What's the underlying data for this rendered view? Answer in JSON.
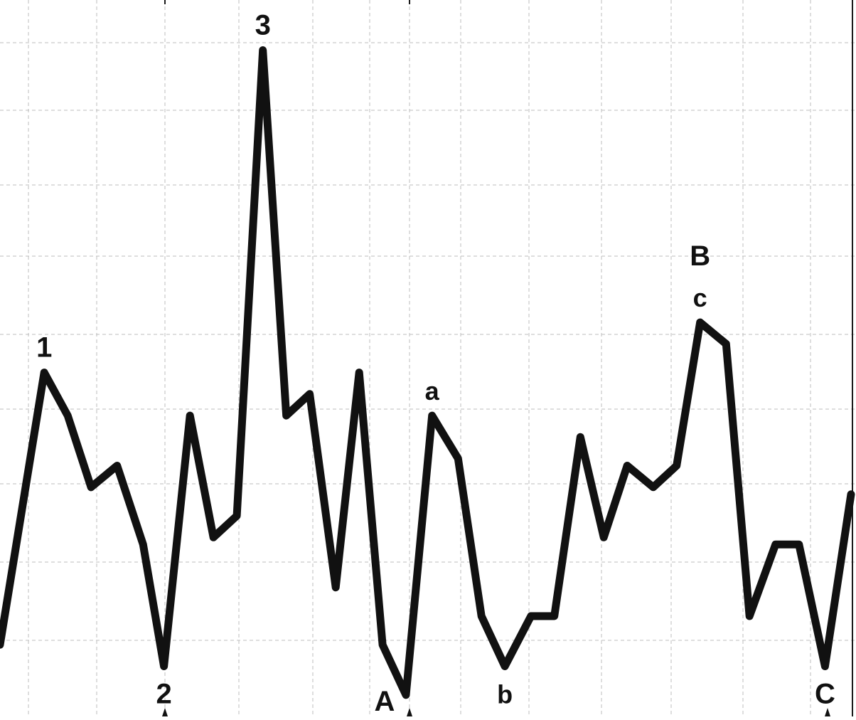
{
  "chart_data": {
    "type": "line",
    "title": "",
    "xlabel": "",
    "ylabel": "",
    "grid": true,
    "xlim": [
      0,
      32.7
    ],
    "ylim": [
      0,
      100
    ],
    "series": [
      {
        "values": [
          {
            "x": 0.0,
            "y": 10
          },
          {
            "x": 1.7,
            "y": 48
          },
          {
            "x": 2.6,
            "y": 42
          },
          {
            "x": 3.5,
            "y": 32
          },
          {
            "x": 4.5,
            "y": 35
          },
          {
            "x": 5.5,
            "y": 24
          },
          {
            "x": 6.3,
            "y": 7
          },
          {
            "x": 7.3,
            "y": 42
          },
          {
            "x": 8.2,
            "y": 25
          },
          {
            "x": 9.1,
            "y": 28
          },
          {
            "x": 10.1,
            "y": 93
          },
          {
            "x": 11.0,
            "y": 42
          },
          {
            "x": 11.9,
            "y": 45
          },
          {
            "x": 12.9,
            "y": 18
          },
          {
            "x": 13.8,
            "y": 48
          },
          {
            "x": 14.7,
            "y": 10
          },
          {
            "x": 15.6,
            "y": 3
          },
          {
            "x": 16.6,
            "y": 42
          },
          {
            "x": 17.6,
            "y": 36
          },
          {
            "x": 18.5,
            "y": 14
          },
          {
            "x": 19.4,
            "y": 7
          },
          {
            "x": 20.4,
            "y": 14
          },
          {
            "x": 21.3,
            "y": 14
          },
          {
            "x": 22.3,
            "y": 39
          },
          {
            "x": 23.2,
            "y": 25
          },
          {
            "x": 24.1,
            "y": 35
          },
          {
            "x": 25.1,
            "y": 32
          },
          {
            "x": 26.0,
            "y": 35
          },
          {
            "x": 26.9,
            "y": 55
          },
          {
            "x": 27.9,
            "y": 52
          },
          {
            "x": 28.8,
            "y": 14
          },
          {
            "x": 29.8,
            "y": 24
          },
          {
            "x": 30.7,
            "y": 24
          },
          {
            "x": 31.7,
            "y": 7
          },
          {
            "x": 32.7,
            "y": 31
          }
        ]
      }
    ],
    "annotations": [
      {
        "text": "1",
        "x": 1.7,
        "y": 48,
        "place": "above"
      },
      {
        "text": "2",
        "x": 6.3,
        "y": 7,
        "place": "below"
      },
      {
        "text": "3",
        "x": 10.1,
        "y": 93,
        "place": "above"
      },
      {
        "text": "A",
        "x": 15.6,
        "y": 3,
        "place": "below-left"
      },
      {
        "text": "a",
        "x": 16.6,
        "y": 42,
        "place": "above"
      },
      {
        "text": "b",
        "x": 19.4,
        "y": 7,
        "place": "below"
      },
      {
        "text": "c",
        "x": 26.9,
        "y": 55,
        "place": "above"
      },
      {
        "text": "B",
        "x": 26.9,
        "y": 55,
        "place": "above-far"
      },
      {
        "text": "C",
        "x": 31.7,
        "y": 7,
        "place": "below"
      }
    ],
    "style": {
      "line_color": "#111111",
      "grid_color": "#bdbdbd",
      "background": "#ffffff"
    }
  }
}
